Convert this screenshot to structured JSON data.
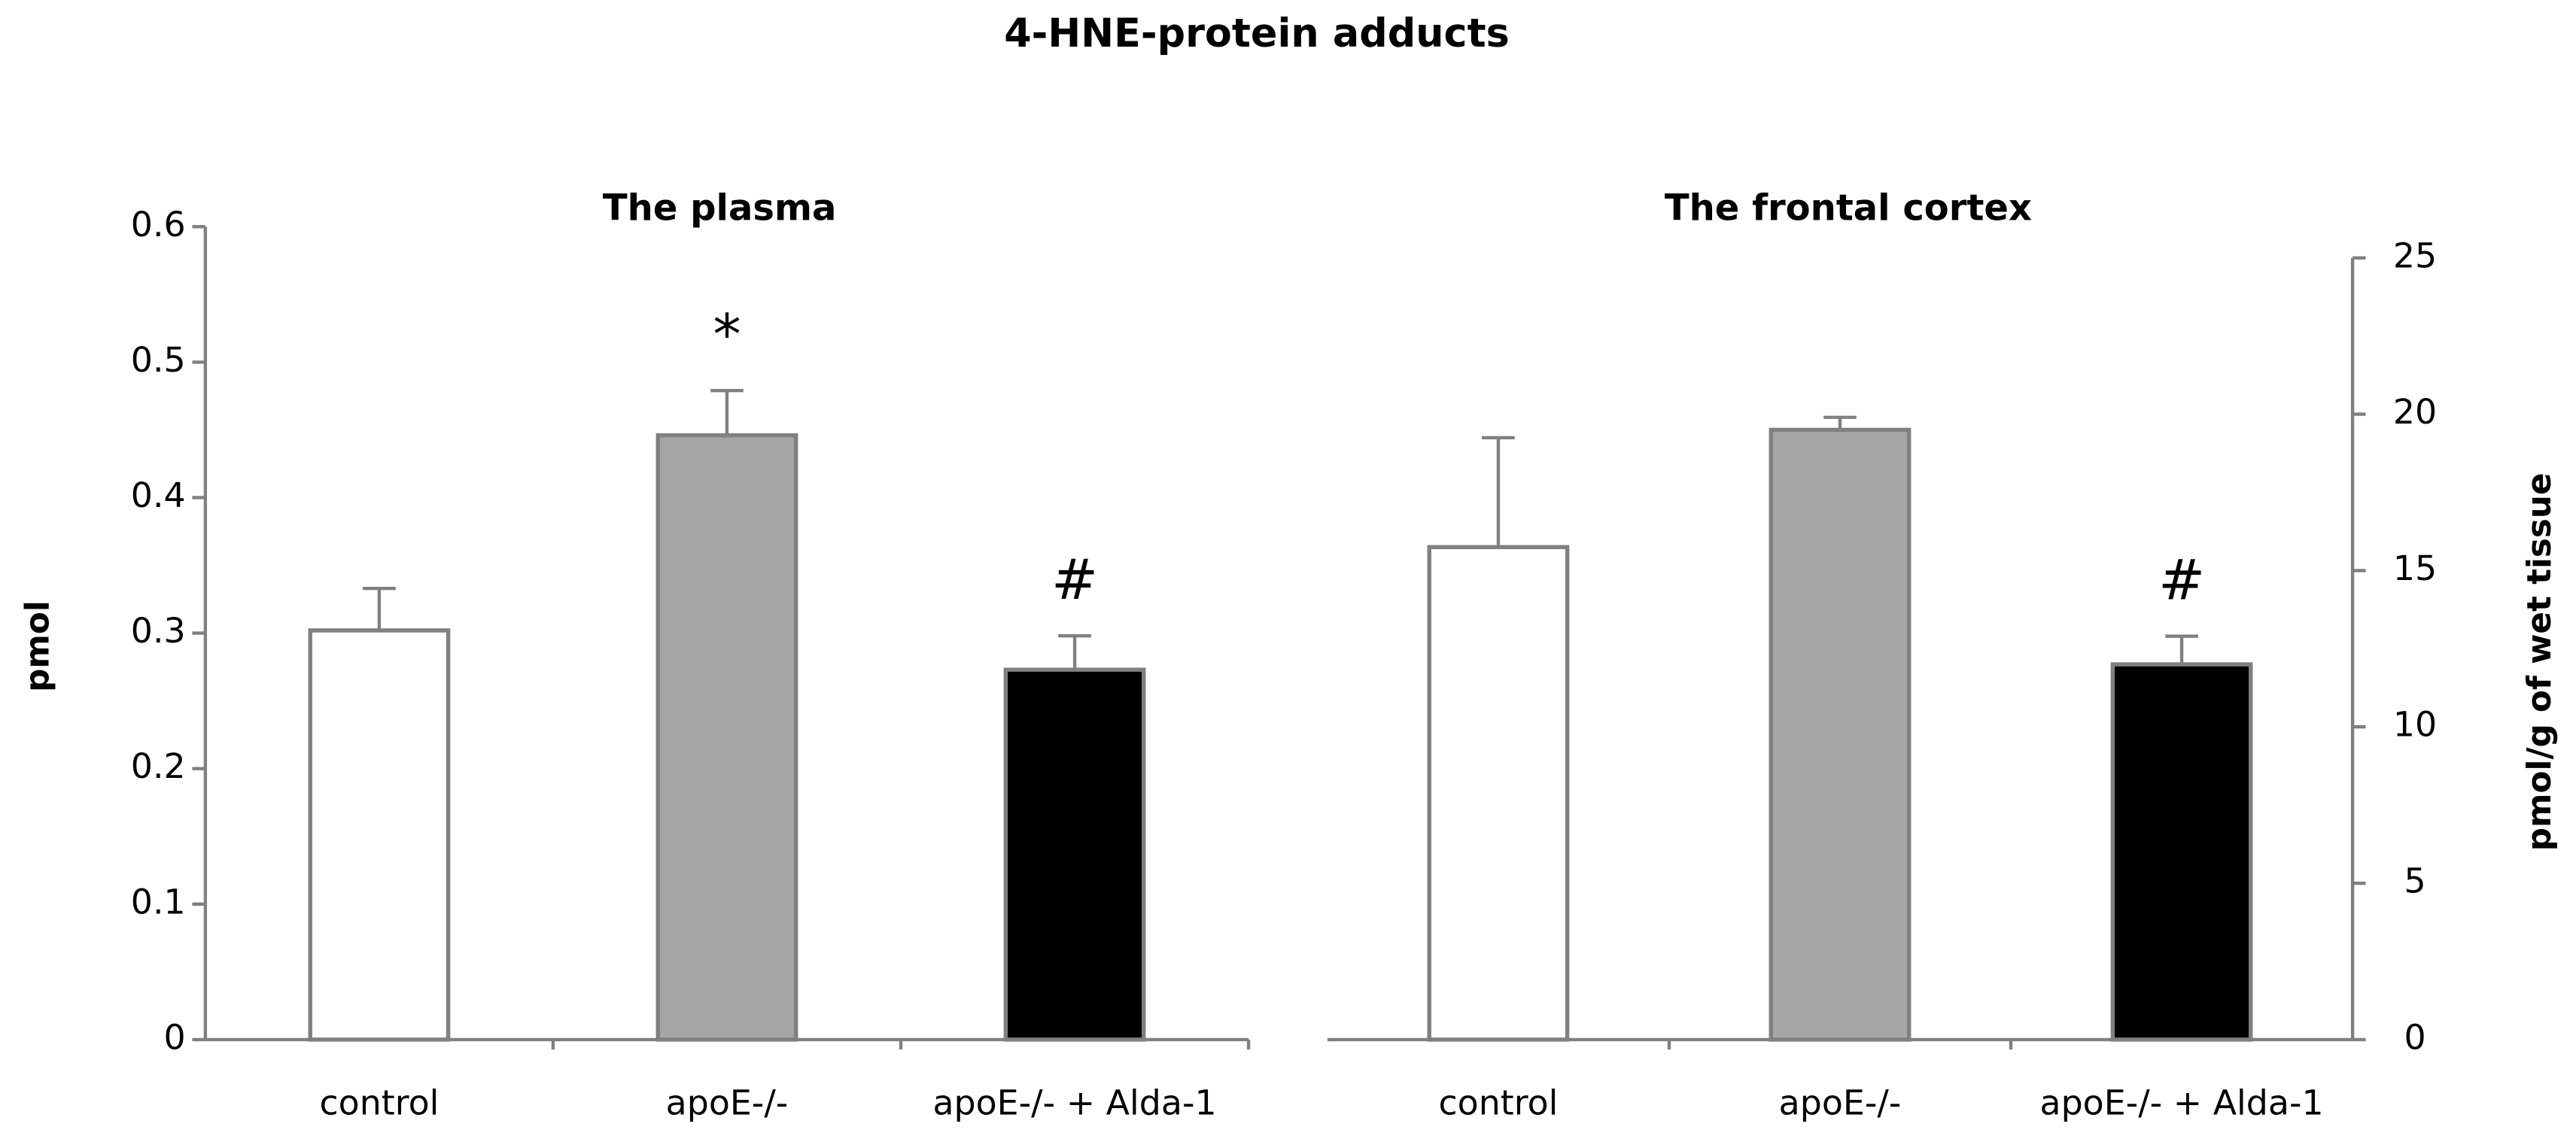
{
  "title": "4-HNE-protein adducts",
  "chart_data": [
    {
      "type": "bar",
      "title": "The plasma",
      "y_label": "pmol",
      "y_axis_side": "left",
      "categories": [
        "control",
        "apoE-/-",
        "apoE-/- + Alda-1"
      ],
      "values": [
        0.302,
        0.446,
        0.273
      ],
      "errors": [
        0.031,
        0.033,
        0.025
      ],
      "colors": [
        "#ffffff",
        "#a6a6a6",
        "#000000"
      ],
      "significance": [
        null,
        "*",
        "#"
      ],
      "ylim": [
        0,
        0.6
      ],
      "yticks": [
        0,
        0.1,
        0.2,
        0.3,
        0.4,
        0.5,
        0.6
      ]
    },
    {
      "type": "bar",
      "title": "The frontal cortex",
      "y_label": "pmol/g of wet tissue",
      "y_axis_side": "right",
      "categories": [
        "control",
        "apoE-/-",
        "apoE-/- + Alda-1"
      ],
      "values": [
        15.75,
        19.5,
        12.0
      ],
      "errors": [
        3.5,
        0.4,
        0.9
      ],
      "colors": [
        "#ffffff",
        "#a6a6a6",
        "#000000"
      ],
      "significance": [
        null,
        null,
        "#"
      ],
      "ylim": [
        0,
        25
      ],
      "yticks": [
        0,
        5,
        10,
        15,
        20,
        25
      ]
    }
  ]
}
